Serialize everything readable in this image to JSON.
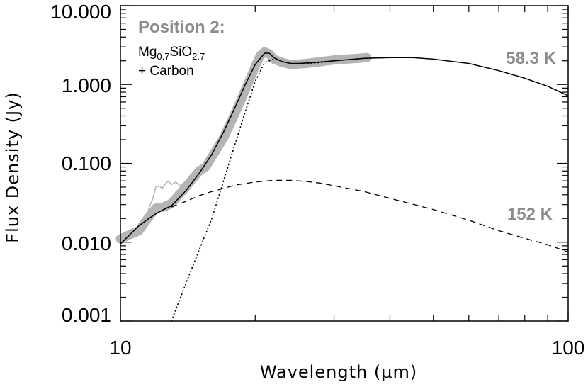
{
  "chart_data": {
    "type": "line",
    "x_scale": "log",
    "y_scale": "log",
    "xlim": [
      10,
      100
    ],
    "ylim": [
      0.001,
      10
    ],
    "xlabel": "Wavelength (μm)",
    "ylabel": "Flux Density (Jy)",
    "x_tick_labels": [
      {
        "value": 10,
        "label": "10"
      },
      {
        "value": 100,
        "label": "100"
      }
    ],
    "y_tick_labels": [
      {
        "value": 0.001,
        "label": "0.001"
      },
      {
        "value": 0.01,
        "label": "0.010"
      },
      {
        "value": 0.1,
        "label": "0.100"
      },
      {
        "value": 1,
        "label": "1.000"
      },
      {
        "value": 10,
        "label": "10.000"
      }
    ],
    "annotations": {
      "position": "Position 2:",
      "material": {
        "mg": "Mg",
        "mg_sub": "0.7",
        "si": "SiO",
        "si_sub": "2.7"
      },
      "carbon": "+ Carbon",
      "temp_cold": "58.3 K",
      "temp_warm": "152 K"
    },
    "series": [
      {
        "style": "observed-band",
        "color": "#b4b4b4",
        "x": [
          10.0,
          10.5,
          11.0,
          11.5,
          12.0,
          12.5,
          13.0,
          13.5,
          14.0,
          14.5,
          15.0,
          15.5,
          16.0,
          16.5,
          17.0,
          17.5,
          18.0,
          18.5,
          19.0,
          19.5,
          20.0,
          20.5,
          21.0,
          21.5,
          22.0,
          23.0,
          24.0,
          25.0,
          26.0,
          28.0,
          30.0,
          32.0,
          34.0,
          35.5
        ],
        "y": [
          0.011,
          0.0125,
          0.014,
          0.02,
          0.027,
          0.028,
          0.031,
          0.04,
          0.05,
          0.064,
          0.08,
          0.09,
          0.12,
          0.16,
          0.21,
          0.3,
          0.42,
          0.6,
          0.85,
          1.2,
          1.7,
          2.3,
          2.6,
          2.45,
          2.1,
          1.9,
          1.8,
          1.82,
          1.85,
          1.95,
          2.05,
          2.1,
          2.15,
          2.2
        ]
      },
      {
        "style": "observed-thin",
        "color": "#b4b4b4",
        "x": [
          11.4,
          11.6,
          11.8,
          12.0,
          12.2,
          12.4,
          12.6,
          12.8,
          13.0,
          13.3,
          13.6,
          14.0,
          14.5,
          15.0
        ],
        "y": [
          0.02,
          0.028,
          0.035,
          0.05,
          0.052,
          0.048,
          0.055,
          0.06,
          0.054,
          0.058,
          0.052,
          0.06,
          0.065,
          0.075
        ]
      },
      {
        "style": "total-model",
        "color": "#000000",
        "x": [
          10.0,
          10.5,
          11.0,
          11.5,
          12.0,
          12.5,
          13.0,
          14.0,
          15.0,
          16.0,
          17.0,
          18.0,
          19.0,
          20.0,
          21.0,
          21.5,
          22.0,
          23.0,
          24.0,
          25.0,
          27.0,
          30.0,
          35.0,
          40.0,
          45.0,
          50.0,
          60.0,
          70.0,
          80.0,
          90.0,
          100.0
        ],
        "y": [
          0.0095,
          0.0125,
          0.0162,
          0.0195,
          0.023,
          0.026,
          0.029,
          0.045,
          0.075,
          0.13,
          0.25,
          0.5,
          1.0,
          1.8,
          2.5,
          2.5,
          2.2,
          1.95,
          1.85,
          1.85,
          1.9,
          2.0,
          2.15,
          2.2,
          2.2,
          2.1,
          1.85,
          1.5,
          1.2,
          0.95,
          0.72
        ]
      },
      {
        "style": "warm-component",
        "name": "152 K",
        "color": "#000000",
        "x": [
          13.0,
          14.0,
          15.0,
          16.0,
          17.0,
          18.0,
          20.0,
          22.0,
          24.0,
          26.0,
          28.0,
          30.0,
          35.0,
          40.0,
          50.0,
          60.0,
          70.0,
          80.0,
          90.0,
          100.0
        ],
        "y": [
          0.028,
          0.033,
          0.039,
          0.044,
          0.048,
          0.053,
          0.058,
          0.061,
          0.061,
          0.059,
          0.056,
          0.052,
          0.044,
          0.036,
          0.026,
          0.019,
          0.014,
          0.0112,
          0.0093,
          0.0075
        ]
      },
      {
        "style": "cold-component",
        "name": "58.3 K",
        "color": "#000000",
        "x": [
          13.0,
          14.0,
          15.0,
          16.0,
          17.0,
          18.0,
          19.0,
          20.0,
          21.0,
          22.0,
          24.0,
          26.0,
          28.0,
          30.0,
          35.0,
          40.0
        ],
        "y": [
          0.001,
          0.003,
          0.008,
          0.02,
          0.06,
          0.17,
          0.45,
          1.1,
          1.9,
          2.1,
          1.85,
          1.85,
          1.9,
          2.0,
          2.15,
          2.2
        ]
      }
    ]
  }
}
